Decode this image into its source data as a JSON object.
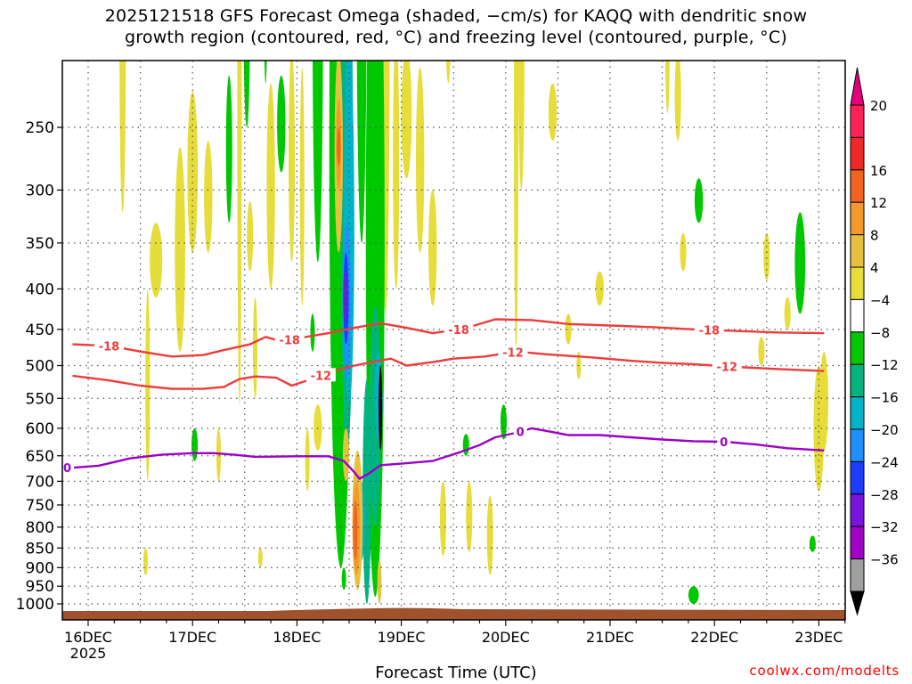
{
  "title": {
    "line1": "2025121518 GFS Forecast Omega (shaded, −cm/s) for KAQQ with dendritic snow",
    "line2": "growth region (contoured, red, °C) and freezing level (contoured, purple, °C)"
  },
  "credit": "coolwx.com/modelts",
  "chart_data": {
    "type": "heatmap",
    "title": "2025121518 GFS Forecast Omega (shaded, −cm/s) for KAQQ with dendritic snow growth region (contoured, red, °C) and freezing level (contoured, purple, °C)",
    "xlabel": "Forecast Time (UTC)",
    "ylabel": "",
    "x_range_days": [
      -0.15,
      7.05
    ],
    "y_axis": {
      "unit": "hPa",
      "scale": "log-pressure",
      "range": [
        1030,
        200
      ],
      "ticks": [
        250,
        300,
        350,
        400,
        450,
        500,
        550,
        600,
        650,
        700,
        750,
        800,
        850,
        900,
        950,
        1000
      ],
      "tick_labels": [
        "250",
        "300",
        "350",
        "400",
        "450",
        "500",
        "550",
        "600",
        "650",
        "700",
        "750",
        "800",
        "850",
        "900",
        "950",
        "1000"
      ]
    },
    "x_ticks": [
      {
        "day": 0,
        "label": "16DEC",
        "sub": "2025"
      },
      {
        "day": 1,
        "label": "17DEC",
        "sub": ""
      },
      {
        "day": 2,
        "label": "18DEC",
        "sub": ""
      },
      {
        "day": 3,
        "label": "19DEC",
        "sub": ""
      },
      {
        "day": 4,
        "label": "20DEC",
        "sub": ""
      },
      {
        "day": 5,
        "label": "21DEC",
        "sub": ""
      },
      {
        "day": 6,
        "label": "22DEC",
        "sub": ""
      },
      {
        "day": 7,
        "label": "23DEC",
        "sub": ""
      }
    ],
    "grid": true,
    "colorbar": {
      "labels": [
        "20",
        "16",
        "12",
        "8",
        "4",
        "−4",
        "−8",
        "−12",
        "−16",
        "−20",
        "−24",
        "−28",
        "−32",
        "−36"
      ],
      "colors": [
        "#ff2255",
        "#f02828",
        "#f06420",
        "#f59a2a",
        "#e8c040",
        "#e6dc3a",
        "#ffffff",
        "#00c800",
        "#00b482",
        "#00b4c8",
        "#1e90ff",
        "#1e3cff",
        "#7814dc",
        "#a000c8",
        "#a0a0a0"
      ],
      "top_arrow_color": "#e6007e",
      "bottom_arrow_color": "#000000"
    },
    "colors": {
      "dgz": "#ef3b3b",
      "freezing": "#9c00c8",
      "ground": "#a0522d"
    },
    "series": [
      {
        "name": "-18 °C isotherm",
        "contour_label": "-18",
        "label_days": [
          0.2,
          1.93,
          3.55,
          5.95
        ],
        "points": [
          [
            -0.15,
            470
          ],
          [
            0.2,
            472
          ],
          [
            0.5,
            480
          ],
          [
            0.8,
            487
          ],
          [
            1.1,
            485
          ],
          [
            1.3,
            478
          ],
          [
            1.55,
            470
          ],
          [
            1.7,
            460
          ],
          [
            1.85,
            466
          ],
          [
            2.0,
            462
          ],
          [
            2.3,
            455
          ],
          [
            2.55,
            448
          ],
          [
            2.8,
            442
          ],
          [
            3.05,
            448
          ],
          [
            3.3,
            455
          ],
          [
            3.6,
            449
          ],
          [
            3.9,
            437
          ],
          [
            4.25,
            438
          ],
          [
            4.6,
            443
          ],
          [
            5.0,
            445
          ],
          [
            5.4,
            447
          ],
          [
            5.8,
            450
          ],
          [
            6.2,
            452
          ],
          [
            6.6,
            454
          ],
          [
            7.05,
            455
          ]
        ]
      },
      {
        "name": "-12 °C isotherm",
        "contour_label": "-12",
        "label_days": [
          2.23,
          4.07,
          6.12
        ],
        "points": [
          [
            -0.15,
            515
          ],
          [
            0.2,
            522
          ],
          [
            0.5,
            530
          ],
          [
            0.8,
            535
          ],
          [
            1.1,
            535
          ],
          [
            1.3,
            532
          ],
          [
            1.45,
            520
          ],
          [
            1.6,
            516
          ],
          [
            1.8,
            518
          ],
          [
            1.95,
            530
          ],
          [
            2.1,
            522
          ],
          [
            2.3,
            510
          ],
          [
            2.55,
            500
          ],
          [
            2.75,
            494
          ],
          [
            2.9,
            490
          ],
          [
            3.05,
            500
          ],
          [
            3.3,
            495
          ],
          [
            3.5,
            490
          ],
          [
            3.8,
            487
          ],
          [
            4.1,
            480
          ],
          [
            4.4,
            484
          ],
          [
            4.8,
            488
          ],
          [
            5.2,
            493
          ],
          [
            5.5,
            496
          ],
          [
            5.8,
            498
          ],
          [
            6.2,
            502
          ],
          [
            6.6,
            505
          ],
          [
            7.05,
            508
          ]
        ]
      },
      {
        "name": "0 °C freezing level",
        "contour_label": "0",
        "label_days": [
          -0.2,
          4.14,
          6.09
        ],
        "points": [
          [
            -0.15,
            673
          ],
          [
            0.1,
            669
          ],
          [
            0.4,
            655
          ],
          [
            0.7,
            648
          ],
          [
            1.0,
            645
          ],
          [
            1.2,
            645
          ],
          [
            1.4,
            648
          ],
          [
            1.6,
            652
          ],
          [
            2.0,
            651
          ],
          [
            2.3,
            651
          ],
          [
            2.45,
            660
          ],
          [
            2.55,
            682
          ],
          [
            2.6,
            695
          ],
          [
            2.7,
            683
          ],
          [
            2.8,
            668
          ],
          [
            3.0,
            665
          ],
          [
            3.3,
            660
          ],
          [
            3.55,
            644
          ],
          [
            3.75,
            630
          ],
          [
            3.9,
            616
          ],
          [
            4.1,
            608
          ],
          [
            4.25,
            600
          ],
          [
            4.4,
            605
          ],
          [
            4.6,
            612
          ],
          [
            4.9,
            612
          ],
          [
            5.2,
            616
          ],
          [
            5.5,
            620
          ],
          [
            5.8,
            623
          ],
          [
            6.1,
            624
          ],
          [
            6.4,
            629
          ],
          [
            6.7,
            636
          ],
          [
            7.05,
            640
          ]
        ]
      }
    ],
    "omega_fields": [
      {
        "day": 2.4,
        "p_top": 220,
        "p_bot": 1000,
        "min_value": -36,
        "max_value": 20
      }
    ]
  }
}
